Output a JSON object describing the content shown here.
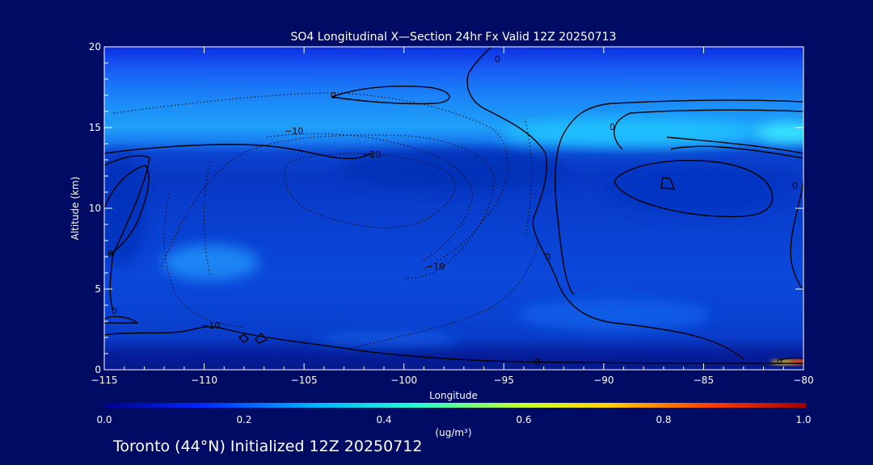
{
  "chart_data": {
    "type": "heatmap",
    "title": "SO4 Longitudinal X—Section 24hr  Fx Valid 12Z 20250713",
    "xlabel": "Longitude",
    "ylabel": "Altitude (km)",
    "xlim": [
      -115,
      -80
    ],
    "ylim": [
      0,
      20
    ],
    "x_ticks": [
      -115,
      -110,
      -105,
      -100,
      -95,
      -90,
      -85,
      -80
    ],
    "x_tick_labels": [
      "−115",
      "−110",
      "−105",
      "−100",
      "−95",
      "−90",
      "−85",
      "−80"
    ],
    "y_ticks": [
      0,
      5,
      10,
      15,
      20
    ],
    "y_tick_labels": [
      "0",
      "5",
      "10",
      "15",
      "20"
    ],
    "colorbar": {
      "min": 0.0,
      "max": 1.0,
      "ticks": [
        "0.0",
        "0.2",
        "0.4",
        "0.6",
        "0.8",
        "1.0"
      ],
      "unit_label": "(ug/m³)",
      "colors": [
        "#00008b",
        "#0028ff",
        "#00b4ff",
        "#28ffd0",
        "#c8ff28",
        "#ffd000",
        "#ff4000",
        "#a00000"
      ]
    },
    "concentration_bands": [
      {
        "alt_range": [
          18,
          20
        ],
        "value": 0.06
      },
      {
        "alt_range": [
          16,
          18
        ],
        "value": 0.18
      },
      {
        "alt_range": [
          14,
          16
        ],
        "value": 0.28
      },
      {
        "alt_range": [
          12,
          14
        ],
        "value": 0.14
      },
      {
        "alt_range": [
          5,
          12
        ],
        "value": 0.1
      },
      {
        "alt_range": [
          1,
          5
        ],
        "value": 0.12
      },
      {
        "alt_range": [
          0,
          1
        ],
        "value": 0.05
      }
    ],
    "features": [
      {
        "lon": [
          -95,
          -88
        ],
        "alt": [
          13.5,
          15
        ],
        "value": 0.32
      },
      {
        "lon": [
          -82,
          -80
        ],
        "alt": [
          14,
          15
        ],
        "value": 0.36
      },
      {
        "lon": [
          -113,
          -107
        ],
        "alt": [
          5.5,
          7.5
        ],
        "value": 0.2
      },
      {
        "lon": [
          -82,
          -80
        ],
        "alt": [
          0.2,
          0.7
        ],
        "value": 0.7
      }
    ],
    "contour_labels": [
      "0",
      "−10",
      "−20",
      "−10",
      "0",
      "0",
      "0",
      "0",
      "0",
      "−10",
      "0",
      "0",
      "0"
    ]
  },
  "footer": "Toronto (44°N) Initialized 12Z 20250712"
}
